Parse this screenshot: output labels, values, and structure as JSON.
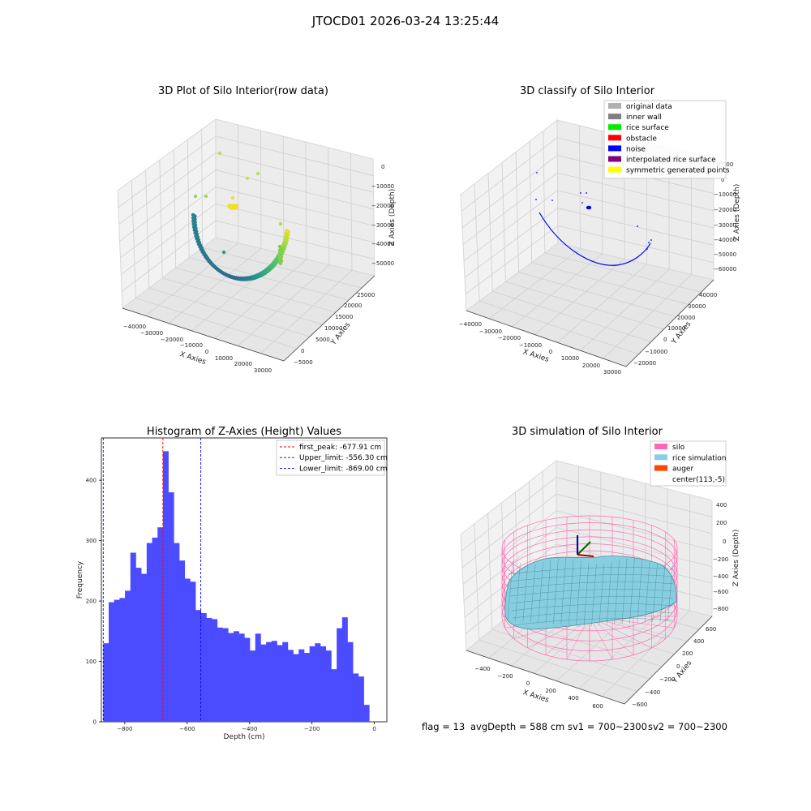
{
  "suptitle": "JTOCD01 2026-03-24 13:25:44",
  "footer": {
    "flag": "flag = 13",
    "avg_depth": "avgDepth = 588 cm",
    "sv1": "sv1 = 700~2300",
    "sv2": "sv2 = 700~2300"
  },
  "colors": {
    "hist_bar": "#4b4bff",
    "peak_line": "#ff0000",
    "limit_line": "#0000ff",
    "silo_mesh": "#ff69b4",
    "rice": "#87cfe0",
    "noise": "#0000ff"
  },
  "chart_data": [
    {
      "type": "scatter",
      "projection": "3d",
      "title": "3D Plot of Silo Interior(row data)",
      "xlabel": "X Axies",
      "ylabel": "Y Axies",
      "zlabel": "Z Axies (Depth)",
      "x_ticks": [
        "−40000",
        "−30000",
        "−20000",
        "−10000",
        "0",
        "10000",
        "20000",
        "30000"
      ],
      "y_ticks": [
        "−5000",
        "0",
        "5000",
        "10000",
        "15000",
        "20000",
        "25000"
      ],
      "z_ticks": [
        "0",
        "−10000",
        "−20000",
        "−30000",
        "−40000",
        "−50000"
      ],
      "colormap": "viridis by depth"
    },
    {
      "type": "scatter",
      "projection": "3d",
      "title": "3D classify of Silo Interior",
      "xlabel": "X Axies",
      "ylabel": "Y Axies",
      "zlabel": "Z Axies (Depth)",
      "x_ticks": [
        "−40000",
        "−30000",
        "−20000",
        "−10000",
        "0",
        "10000",
        "20000",
        "30000"
      ],
      "y_ticks": [
        "−20000",
        "−10000",
        "0",
        "10000",
        "20000",
        "30000",
        "40000"
      ],
      "z_ticks": [
        "10000",
        "0",
        "−10000",
        "−20000",
        "−30000",
        "−40000",
        "−50000",
        "−60000"
      ],
      "legend_position": "top-right",
      "legend": [
        {
          "label": "original data",
          "color": "#b0b0b0"
        },
        {
          "label": "inner wall",
          "color": "#808080"
        },
        {
          "label": "rice surface",
          "color": "#00ee00"
        },
        {
          "label": "obstacle",
          "color": "#ff0000"
        },
        {
          "label": "noise",
          "color": "#0000ff"
        },
        {
          "label": "interpolated rice surface",
          "color": "#800080"
        },
        {
          "label": "symmetric generated points",
          "color": "#ffff00"
        }
      ]
    },
    {
      "type": "bar",
      "title": "Histogram of Z-Axies (Height) Values",
      "xlabel": "Depth (cm)",
      "ylabel": "Frequency",
      "xlim": [
        -875,
        40
      ],
      "ylim": [
        0,
        470
      ],
      "x_ticks": [
        -800,
        -600,
        -400,
        -200,
        0
      ],
      "x_tick_labels": [
        "−800",
        "−600",
        "−400",
        "−200",
        "0"
      ],
      "y_ticks": [
        0,
        100,
        200,
        300,
        400
      ],
      "bin_start": -869,
      "bin_width": 17.4,
      "values": [
        130,
        198,
        202,
        205,
        217,
        280,
        255,
        245,
        296,
        305,
        322,
        448,
        380,
        296,
        267,
        237,
        232,
        185,
        180,
        172,
        170,
        156,
        155,
        147,
        150,
        146,
        139,
        118,
        146,
        128,
        132,
        134,
        127,
        132,
        119,
        112,
        120,
        114,
        125,
        130,
        125,
        118,
        87,
        155,
        173,
        132,
        80,
        75,
        28
      ],
      "lines": [
        {
          "label": "first_peak: -677.91 cm",
          "x": -677.91,
          "color": "#ff0000"
        },
        {
          "label": "Upper_limit: -556.30 cm",
          "x": -556.3,
          "color": "#0000ff"
        },
        {
          "label": "Lower_limit: -869.00 cm",
          "x": -869.0,
          "color": "#0000ff"
        }
      ],
      "legend_position": "top-right"
    },
    {
      "type": "surface",
      "projection": "3d",
      "title": "3D simulation of Silo Interior",
      "xlabel": "X Axies",
      "ylabel": "Y Axies",
      "zlabel": "Z Axies (Depth)",
      "x_ticks": [
        "−400",
        "−200",
        "0",
        "200",
        "400",
        "600"
      ],
      "y_ticks": [
        "−600",
        "−400",
        "−200",
        "0",
        "200",
        "400",
        "600"
      ],
      "z_ticks": [
        "400",
        "200",
        "0",
        "−200",
        "−400",
        "−600",
        "−800"
      ],
      "legend_position": "top-right",
      "legend": [
        {
          "label": "silo",
          "color": "#ff69b4"
        },
        {
          "label": "rice simulation",
          "color": "#87ceeb"
        },
        {
          "label": "auger",
          "color": "#ff4500"
        },
        {
          "label": "center(113,-5)",
          "color": "none"
        }
      ]
    }
  ]
}
